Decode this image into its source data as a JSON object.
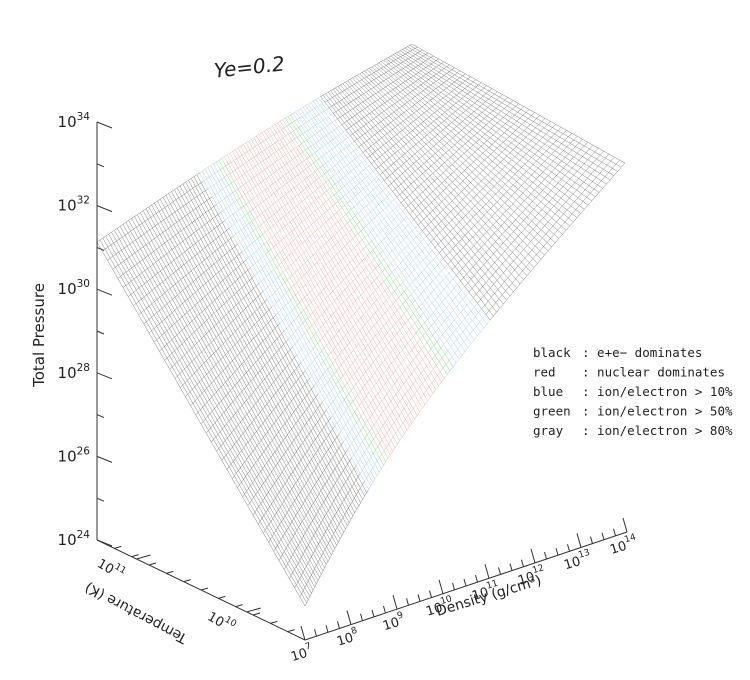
{
  "chart_data": {
    "type": "surface",
    "title": "Ye=0.2",
    "zlabel": "Total Pressure",
    "xlabel": "Density (g/cm³)",
    "ylabel": "Temperature (K)",
    "z_ticks": [
      "10^24",
      "10^26",
      "10^28",
      "10^30",
      "10^32",
      "10^34"
    ],
    "x_ticks": [
      "10^7",
      "10^8",
      "10^9",
      "10^10",
      "10^11",
      "10^12",
      "10^13",
      "10^14"
    ],
    "y_ticks": [
      "10^10",
      "10^11"
    ],
    "scale": "log",
    "xlim": [
      7,
      14
    ],
    "zlim": [
      24,
      34
    ],
    "surface_corners_log10_pressure": {
      "near_rho_min_T_max": 31.0,
      "far_rho_max_T_min": 24.5,
      "peak_rho_max_T_max": 33.6,
      "right_rho_max_T_mid": 32.8
    },
    "regions": [
      {
        "name": "black",
        "meaning": "e+e− dominates",
        "color": "#777777"
      },
      {
        "name": "blue",
        "meaning": "ion/electron > 10%",
        "color": "#9ac8ee"
      },
      {
        "name": "green",
        "meaning": "ion/electron > 50%",
        "color": "#7fcf86"
      },
      {
        "name": "red",
        "meaning": "nuclear dominates",
        "color": "#f0a0a0"
      },
      {
        "name": "gray",
        "meaning": "ion/electron > 80%",
        "color": "#888888"
      }
    ],
    "legend": [
      {
        "key": "black",
        "desc": ": e+e− dominates"
      },
      {
        "key": "red",
        "desc": ": nuclear dominates"
      },
      {
        "key": "blue",
        "desc": ": ion/electron > 10%"
      },
      {
        "key": "green",
        "desc": ": ion/electron > 50%"
      },
      {
        "key": "gray",
        "desc": ": ion/electron > 80%"
      }
    ],
    "legend_placement": "right"
  }
}
